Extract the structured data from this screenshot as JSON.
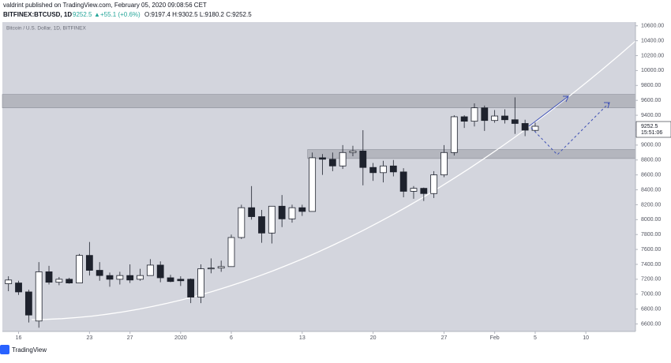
{
  "chart_data": {
    "type": "candlestick",
    "publisher": "valdrint published on TradingView.com, February 05, 2020 09:08:56 CET",
    "symbol": "BITFINEX:BTCUSD, 1D",
    "last": "9252.5",
    "change_arrow": "▲",
    "change": "+55.1 (+0.6%)",
    "ohlc_text": "O:9197.4 H:9302.5 L:9180.2 C:9252.5",
    "watermark": "Bitcoin / U.S. Dollar, 1D, BITFINEX",
    "price_label": "9252.5",
    "countdown": "15:51:06",
    "brand": "TradingView",
    "up_color": "#ffffff",
    "down_color": "#1e222d",
    "zone_color": "#a9abb3",
    "open": [
      7140,
      7150,
      7030,
      6640,
      7300,
      7160,
      7200,
      7150,
      7520,
      7320,
      7250,
      7200,
      7250,
      7200,
      7250,
      7390,
      7220,
      7200,
      7200,
      6960,
      7340,
      7350,
      7370,
      7760,
      8160,
      8040,
      7820,
      8180,
      8010,
      8160,
      8110,
      8830,
      8810,
      8720,
      8900,
      8920,
      8700,
      8630,
      8720,
      8640,
      8380,
      8420,
      8350,
      8600,
      8900,
      9380,
      9320,
      9500,
      9330,
      9390,
      9340,
      9290,
      9197.4
    ],
    "high": [
      7240,
      7180,
      7060,
      7430,
      7380,
      7230,
      7220,
      7540,
      7700,
      7430,
      7290,
      7300,
      7400,
      7340,
      7470,
      7440,
      7260,
      7240,
      7210,
      7400,
      7480,
      7450,
      7800,
      8200,
      8450,
      8130,
      8160,
      8330,
      8200,
      8200,
      8900,
      8880,
      8900,
      9000,
      8990,
      9200,
      8760,
      8790,
      8800,
      8690,
      8450,
      8430,
      8650,
      9000,
      9400,
      9400,
      9560,
      9530,
      9470,
      9480,
      9640,
      9340,
      9302.5
    ],
    "low": [
      7040,
      6990,
      6620,
      6550,
      7130,
      7120,
      7140,
      7150,
      7250,
      7180,
      7100,
      7130,
      7150,
      7180,
      7250,
      7160,
      7160,
      7110,
      6880,
      6880,
      7280,
      7300,
      7370,
      7740,
      8000,
      7690,
      7680,
      7900,
      7960,
      8050,
      8110,
      8600,
      8650,
      8680,
      8850,
      8460,
      8520,
      8500,
      8580,
      8300,
      8280,
      8250,
      8290,
      8570,
      8860,
      9230,
      9250,
      9190,
      9300,
      9290,
      9150,
      9120,
      9180.2
    ],
    "close": [
      7190,
      7030,
      6720,
      7300,
      7160,
      7200,
      7150,
      7520,
      7320,
      7250,
      7200,
      7250,
      7190,
      7250,
      7390,
      7220,
      7170,
      7180,
      6960,
      7340,
      7350,
      7370,
      7760,
      8160,
      8040,
      7820,
      8180,
      8010,
      8160,
      8110,
      8830,
      8810,
      8720,
      8900,
      8920,
      8700,
      8630,
      8720,
      8640,
      8380,
      8420,
      8350,
      8600,
      8900,
      9380,
      9320,
      9500,
      9330,
      9390,
      9340,
      9290,
      9200,
      9252.5
    ],
    "zones": [
      [
        9500,
        9680
      ],
      [
        8820,
        8940
      ]
    ],
    "ylim": [
      6500,
      10650
    ],
    "yticks": [
      {
        "value": 6600,
        "label": "6600.00"
      },
      {
        "value": 6800,
        "label": "6800.00"
      },
      {
        "value": 7000,
        "label": "7000.00"
      },
      {
        "value": 7200,
        "label": "7200.00"
      },
      {
        "value": 7400,
        "label": "7400.00"
      },
      {
        "value": 7600,
        "label": "7600.00"
      },
      {
        "value": 7800,
        "label": "7800.00"
      },
      {
        "value": 8000,
        "label": "8000.00"
      },
      {
        "value": 8200,
        "label": "8200.00"
      },
      {
        "value": 8400,
        "label": "8400.00"
      },
      {
        "value": 8600,
        "label": "8600.00"
      },
      {
        "value": 8800,
        "label": "8800.00"
      },
      {
        "value": 9000,
        "label": "9000.00"
      },
      {
        "value": 9200,
        "label": "9200.00"
      },
      {
        "value": 9400,
        "label": "9400.00"
      },
      {
        "value": 9600,
        "label": "9600.00"
      },
      {
        "value": 9800,
        "label": "9800.00"
      },
      {
        "value": 10000,
        "label": "10000.00"
      },
      {
        "value": 10200,
        "label": "10200.00"
      },
      {
        "value": 10400,
        "label": "10400.00"
      },
      {
        "value": 10600,
        "label": "10600.00"
      }
    ],
    "xlim": [
      -0.6,
      61.9
    ],
    "xticks": [
      {
        "value": 1,
        "label": "16"
      },
      {
        "value": 8,
        "label": "23"
      },
      {
        "value": 12,
        "label": "27"
      },
      {
        "value": 17,
        "label": "2020"
      },
      {
        "value": 22,
        "label": "6"
      },
      {
        "value": 29,
        "label": "13"
      },
      {
        "value": 36,
        "label": "20"
      },
      {
        "value": 43,
        "label": "27"
      },
      {
        "value": 48,
        "label": "Feb"
      },
      {
        "value": 52,
        "label": "5"
      },
      {
        "value": 57,
        "label": "10"
      }
    ]
  }
}
